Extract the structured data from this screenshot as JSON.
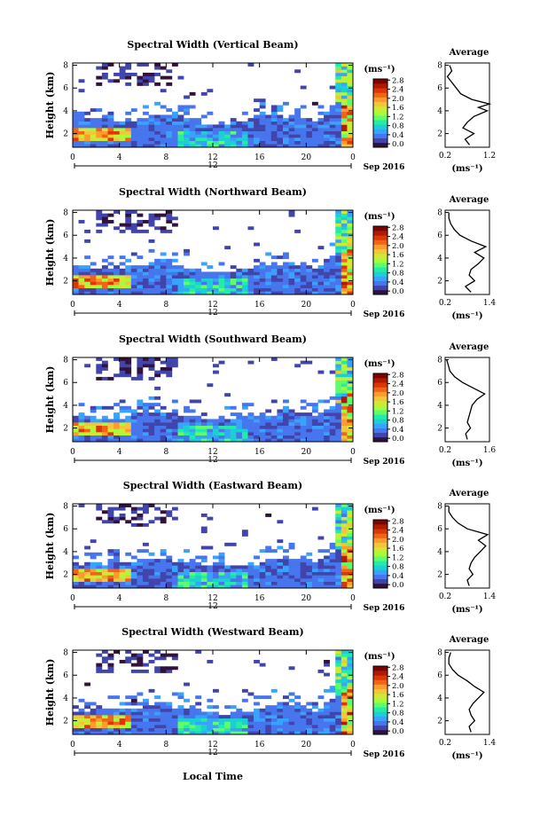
{
  "figure": {
    "xaxis_title": "Local Time",
    "date_label": "Sep 2016",
    "day_label": "12",
    "colorbar_unit": "(ms⁻¹)",
    "colorbar_ticks": [
      "2.8",
      "2.4",
      "2.0",
      "1.6",
      "1.2",
      "0.8",
      "0.4",
      "0.0"
    ],
    "x_ticks": [
      "0",
      "4",
      "8",
      "12",
      "16",
      "20",
      "0"
    ],
    "height_ticks": [
      "8",
      "6",
      "4",
      "2"
    ],
    "profile_title": "Average",
    "profile_xunit": "(ms⁻¹)",
    "ylabel": "Height (km)",
    "colormap": [
      "#30123b",
      "#4145ab",
      "#4675ed",
      "#39a2fc",
      "#1bcfd4",
      "#24eca6",
      "#61fc6c",
      "#a4fc3b",
      "#d1e834",
      "#f3c63a",
      "#fe9b2d",
      "#f36315",
      "#d93806",
      "#b11901",
      "#7a0402"
    ]
  },
  "chart_data": [
    {
      "type": "heatmap",
      "title": "Spectral Width (Vertical Beam)",
      "ylabel": "Height (km)",
      "xlabel": "Local Time",
      "xlim": [
        0,
        24
      ],
      "ylim": [
        0.8,
        8.2
      ],
      "clim": [
        0.0,
        3.0
      ],
      "profile": {
        "title": "Average",
        "xlim": [
          0.2,
          1.2
        ],
        "xticks": [
          "0.2",
          "1.2"
        ],
        "heights": [
          1.0,
          1.5,
          2.0,
          2.5,
          3.0,
          3.5,
          4.0,
          4.3,
          4.6,
          5.0,
          5.5,
          6.0,
          6.5,
          7.0,
          7.5,
          8.0
        ],
        "values": [
          0.75,
          0.65,
          0.85,
          0.6,
          0.7,
          0.85,
          1.15,
          0.95,
          1.2,
          0.8,
          0.55,
          0.45,
          0.35,
          0.25,
          0.35,
          0.3
        ]
      }
    },
    {
      "type": "heatmap",
      "title": "Spectral Width (Northward Beam)",
      "ylabel": "Height (km)",
      "xlabel": "Local Time",
      "xlim": [
        0,
        24
      ],
      "ylim": [
        0.8,
        8.2
      ],
      "clim": [
        0.0,
        3.0
      ],
      "profile": {
        "title": "Average",
        "xlim": [
          0.2,
          1.4
        ],
        "xticks": [
          "0.2",
          "1.4"
        ],
        "heights": [
          1.0,
          1.5,
          2.0,
          2.5,
          3.0,
          3.5,
          4.0,
          4.5,
          5.0,
          5.5,
          6.0,
          6.5,
          7.0,
          7.5,
          8.0
        ],
        "values": [
          0.9,
          0.75,
          1.0,
          0.85,
          0.9,
          1.1,
          1.25,
          1.0,
          1.3,
          0.9,
          0.6,
          0.45,
          0.35,
          0.3,
          0.3
        ]
      }
    },
    {
      "type": "heatmap",
      "title": "Spectral Width (Southward Beam)",
      "ylabel": "Height (km)",
      "xlabel": "Local Time",
      "xlim": [
        0,
        24
      ],
      "ylim": [
        0.8,
        8.2
      ],
      "clim": [
        0.0,
        3.0
      ],
      "profile": {
        "title": "Average",
        "xlim": [
          0.2,
          1.6
        ],
        "xticks": [
          "0.2",
          "1.6"
        ],
        "heights": [
          1.0,
          1.5,
          2.0,
          2.5,
          3.0,
          3.5,
          4.0,
          4.5,
          5.0,
          5.5,
          6.0,
          6.5,
          7.0,
          7.5,
          8.0
        ],
        "values": [
          0.9,
          0.85,
          1.0,
          0.9,
          0.95,
          1.0,
          1.05,
          1.2,
          1.45,
          1.1,
          0.75,
          0.5,
          0.35,
          0.3,
          0.25
        ]
      }
    },
    {
      "type": "heatmap",
      "title": "Spectral Width (Eastward Beam)",
      "ylabel": "Height (km)",
      "xlabel": "Local Time",
      "xlim": [
        0,
        24
      ],
      "ylim": [
        0.8,
        8.2
      ],
      "clim": [
        0.0,
        3.0
      ],
      "profile": {
        "title": "Average",
        "xlim": [
          0.2,
          1.4
        ],
        "xticks": [
          "0.2",
          "1.4"
        ],
        "heights": [
          1.0,
          1.5,
          2.0,
          2.5,
          3.0,
          3.5,
          4.0,
          4.5,
          5.0,
          5.5,
          6.0,
          6.5,
          7.0,
          7.5,
          8.0
        ],
        "values": [
          0.85,
          0.8,
          0.95,
          0.85,
          0.9,
          1.0,
          1.15,
          1.3,
          1.1,
          1.35,
          0.8,
          0.55,
          0.4,
          0.3,
          0.3
        ]
      }
    },
    {
      "type": "heatmap",
      "title": "Spectral Width (Westward Beam)",
      "ylabel": "Height (km)",
      "xlabel": "Local Time",
      "xlim": [
        0,
        24
      ],
      "ylim": [
        0.8,
        8.2
      ],
      "clim": [
        0.0,
        3.0
      ],
      "profile": {
        "title": "Average",
        "xlim": [
          0.2,
          1.4
        ],
        "xticks": [
          "0.2",
          "1.4"
        ],
        "heights": [
          1.0,
          1.5,
          2.0,
          2.5,
          3.0,
          3.5,
          4.0,
          4.5,
          5.0,
          5.5,
          6.0,
          6.5,
          7.0,
          7.5,
          8.0
        ],
        "values": [
          0.9,
          0.85,
          1.0,
          0.9,
          0.85,
          0.95,
          1.1,
          1.25,
          1.0,
          0.8,
          0.55,
          0.4,
          0.3,
          0.3,
          0.35
        ]
      }
    }
  ]
}
